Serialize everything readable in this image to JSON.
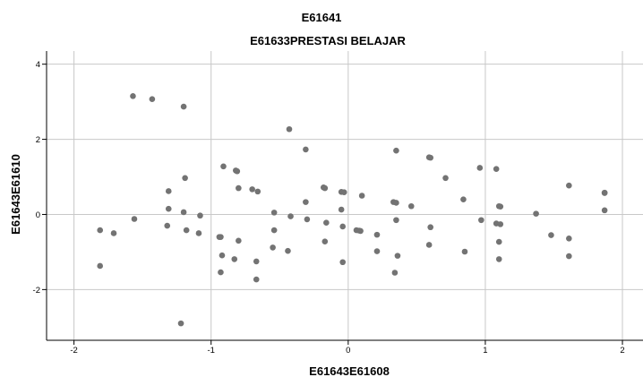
{
  "chart_data": {
    "type": "scatter",
    "title": "E61641",
    "subtitle": "E61633PRESTASI BELAJAR",
    "xlabel": "E61643E61608",
    "ylabel": "E61643E61610",
    "xlim": [
      -2.2,
      2.15
    ],
    "ylim": [
      -3.35,
      4.35
    ],
    "xticks": [
      -2,
      -1,
      0,
      1,
      2
    ],
    "yticks": [
      -2,
      0,
      2,
      4
    ],
    "grid": true,
    "colors": {
      "point": "#737373",
      "grid": "#c8c8c8",
      "axis": "#000000",
      "background": "#ffffff"
    },
    "points": [
      [
        -1.57,
        3.15
      ],
      [
        -1.43,
        3.07
      ],
      [
        -1.2,
        2.87
      ],
      [
        -0.43,
        2.27
      ],
      [
        -0.31,
        1.73
      ],
      [
        0.35,
        1.7
      ],
      [
        0.59,
        1.52
      ],
      [
        0.6,
        1.51
      ],
      [
        0.96,
        1.24
      ],
      [
        1.08,
        1.21
      ],
      [
        -0.91,
        1.28
      ],
      [
        -0.82,
        1.17
      ],
      [
        -0.81,
        1.15
      ],
      [
        0.71,
        0.97
      ],
      [
        -1.19,
        0.97
      ],
      [
        1.61,
        0.77
      ],
      [
        1.87,
        0.58
      ],
      [
        1.87,
        0.57
      ],
      [
        -0.18,
        0.72
      ],
      [
        -0.17,
        0.7
      ],
      [
        -0.05,
        0.6
      ],
      [
        -0.03,
        0.59
      ],
      [
        -0.8,
        0.7
      ],
      [
        -0.7,
        0.67
      ],
      [
        -0.66,
        0.61
      ],
      [
        -1.31,
        0.62
      ],
      [
        0.1,
        0.5
      ],
      [
        0.84,
        0.4
      ],
      [
        -0.31,
        0.33
      ],
      [
        0.33,
        0.33
      ],
      [
        0.35,
        0.31
      ],
      [
        0.46,
        0.22
      ],
      [
        1.1,
        0.22
      ],
      [
        1.11,
        0.21
      ],
      [
        -0.05,
        0.13
      ],
      [
        -1.31,
        0.15
      ],
      [
        1.87,
        0.11
      ],
      [
        -1.2,
        0.06
      ],
      [
        -0.54,
        0.05
      ],
      [
        1.37,
        0.02
      ],
      [
        -1.08,
        -0.03
      ],
      [
        -0.42,
        -0.05
      ],
      [
        -1.56,
        -0.12
      ],
      [
        -0.3,
        -0.13
      ],
      [
        0.35,
        -0.15
      ],
      [
        0.97,
        -0.15
      ],
      [
        -0.16,
        -0.22
      ],
      [
        1.08,
        -0.24
      ],
      [
        1.11,
        -0.26
      ],
      [
        -1.32,
        -0.3
      ],
      [
        -0.04,
        -0.32
      ],
      [
        0.6,
        -0.34
      ],
      [
        -0.54,
        -0.42
      ],
      [
        0.06,
        -0.42
      ],
      [
        0.08,
        -0.43
      ],
      [
        0.09,
        -0.44
      ],
      [
        -1.81,
        -0.42
      ],
      [
        -1.18,
        -0.42
      ],
      [
        -1.09,
        -0.5
      ],
      [
        -1.71,
        -0.5
      ],
      [
        1.48,
        -0.55
      ],
      [
        0.21,
        -0.54
      ],
      [
        -0.94,
        -0.6
      ],
      [
        -0.93,
        -0.6
      ],
      [
        1.61,
        -0.64
      ],
      [
        -0.8,
        -0.7
      ],
      [
        -0.17,
        -0.72
      ],
      [
        1.1,
        -0.73
      ],
      [
        0.59,
        -0.81
      ],
      [
        -0.55,
        -0.88
      ],
      [
        -0.44,
        -0.97
      ],
      [
        0.85,
        -0.99
      ],
      [
        0.21,
        -0.98
      ],
      [
        0.36,
        -1.1
      ],
      [
        -0.92,
        -1.09
      ],
      [
        1.61,
        -1.11
      ],
      [
        -0.83,
        -1.19
      ],
      [
        -0.67,
        -1.25
      ],
      [
        -0.04,
        -1.27
      ],
      [
        1.1,
        -1.19
      ],
      [
        -1.81,
        -1.37
      ],
      [
        -0.93,
        -1.54
      ],
      [
        0.34,
        -1.55
      ],
      [
        -0.67,
        -1.73
      ],
      [
        -1.22,
        -2.9
      ]
    ]
  }
}
